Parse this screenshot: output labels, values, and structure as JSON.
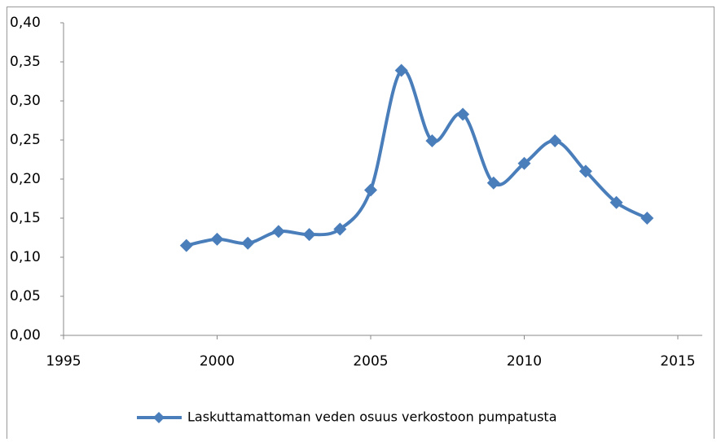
{
  "chart_data": {
    "type": "line",
    "x": [
      1999,
      2000,
      2001,
      2002,
      2003,
      2004,
      2005,
      2006,
      2007,
      2008,
      2009,
      2010,
      2011,
      2012,
      2013,
      2014
    ],
    "series": [
      {
        "name": "Laskuttamattoman veden osuus verkostoon pumpatusta",
        "color": "#4a7ebb",
        "values": [
          0.115,
          0.123,
          0.118,
          0.133,
          0.129,
          0.136,
          0.186,
          0.339,
          0.249,
          0.283,
          0.195,
          0.22,
          0.249,
          0.21,
          0.17,
          0.15
        ]
      }
    ],
    "xlim": [
      1995,
      2015
    ],
    "xticks": [
      1995,
      2000,
      2005,
      2010,
      2015
    ],
    "ylim": [
      0,
      0.4
    ],
    "yticks": [
      {
        "value": 0,
        "label": "0,00"
      },
      {
        "value": 0.05,
        "label": "0,05"
      },
      {
        "value": 0.1,
        "label": "0,10"
      },
      {
        "value": 0.15,
        "label": "0,15"
      },
      {
        "value": 0.2,
        "label": "0,20"
      },
      {
        "value": 0.25,
        "label": "0,25"
      },
      {
        "value": 0.3,
        "label": "0,30"
      },
      {
        "value": 0.35,
        "label": "0,35"
      },
      {
        "value": 0.4,
        "label": "0,40"
      }
    ],
    "legend": "bottom",
    "smooth": true,
    "marker": "diamond"
  }
}
